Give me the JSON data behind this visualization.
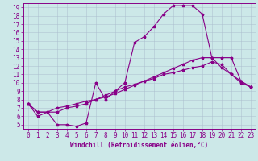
{
  "xlabel": "Windchill (Refroidissement éolien,°C)",
  "bg_color": "#cce8e8",
  "line_color": "#880088",
  "marker": "*",
  "series1": [
    [
      0,
      7.5
    ],
    [
      1,
      6.0
    ],
    [
      2,
      6.5
    ],
    [
      3,
      5.0
    ],
    [
      4,
      5.0
    ],
    [
      5,
      4.8
    ],
    [
      6,
      5.2
    ],
    [
      7,
      10.0
    ],
    [
      8,
      8.0
    ],
    [
      9,
      9.0
    ],
    [
      10,
      10.0
    ],
    [
      11,
      14.8
    ],
    [
      12,
      15.5
    ],
    [
      13,
      16.7
    ],
    [
      14,
      18.2
    ],
    [
      15,
      19.2
    ],
    [
      16,
      19.2
    ],
    [
      17,
      19.2
    ],
    [
      18,
      18.2
    ],
    [
      19,
      13.0
    ],
    [
      20,
      13.0
    ],
    [
      21,
      13.0
    ],
    [
      22,
      10.2
    ],
    [
      23,
      9.5
    ]
  ],
  "series2": [
    [
      0,
      7.5
    ],
    [
      1,
      6.5
    ],
    [
      2,
      6.5
    ],
    [
      3,
      6.5
    ],
    [
      4,
      7.0
    ],
    [
      5,
      7.2
    ],
    [
      6,
      7.5
    ],
    [
      7,
      8.0
    ],
    [
      8,
      8.3
    ],
    [
      9,
      8.7
    ],
    [
      10,
      9.2
    ],
    [
      11,
      9.7
    ],
    [
      12,
      10.2
    ],
    [
      13,
      10.7
    ],
    [
      14,
      11.2
    ],
    [
      15,
      11.7
    ],
    [
      16,
      12.2
    ],
    [
      17,
      12.7
    ],
    [
      18,
      13.0
    ],
    [
      19,
      13.0
    ],
    [
      20,
      11.8
    ],
    [
      21,
      11.0
    ],
    [
      22,
      10.2
    ],
    [
      23,
      9.5
    ]
  ],
  "series3": [
    [
      0,
      7.5
    ],
    [
      1,
      6.5
    ],
    [
      2,
      6.5
    ],
    [
      3,
      7.0
    ],
    [
      4,
      7.2
    ],
    [
      5,
      7.5
    ],
    [
      6,
      7.8
    ],
    [
      7,
      8.0
    ],
    [
      8,
      8.5
    ],
    [
      9,
      9.0
    ],
    [
      10,
      9.5
    ],
    [
      11,
      9.8
    ],
    [
      12,
      10.2
    ],
    [
      13,
      10.5
    ],
    [
      14,
      11.0
    ],
    [
      15,
      11.2
    ],
    [
      16,
      11.5
    ],
    [
      17,
      11.8
    ],
    [
      18,
      12.0
    ],
    [
      19,
      12.5
    ],
    [
      20,
      12.2
    ],
    [
      21,
      11.0
    ],
    [
      22,
      10.0
    ],
    [
      23,
      9.5
    ]
  ],
  "xlim": [
    -0.5,
    23.5
  ],
  "ylim": [
    4.5,
    19.5
  ],
  "yticks": [
    5,
    6,
    7,
    8,
    9,
    10,
    11,
    12,
    13,
    14,
    15,
    16,
    17,
    18,
    19
  ],
  "xticks": [
    0,
    1,
    2,
    3,
    4,
    5,
    6,
    7,
    8,
    9,
    10,
    11,
    12,
    13,
    14,
    15,
    16,
    17,
    18,
    19,
    20,
    21,
    22,
    23
  ],
  "grid_color": "#aabbcc",
  "tick_fontsize": 5.5,
  "xlabel_fontsize": 5.5
}
